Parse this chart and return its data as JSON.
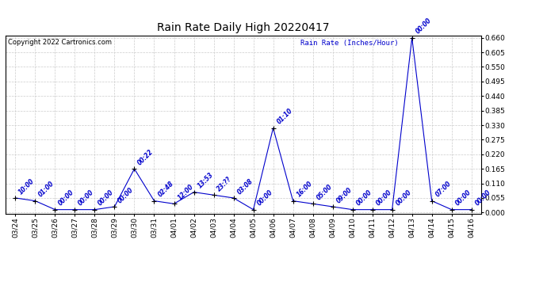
{
  "title": "Rain Rate Daily High 20220417",
  "copyright": "Copyright 2022 Cartronics.com",
  "legend_label": "Rain Rate (Inches/Hour)",
  "x_labels": [
    "03/24",
    "03/25",
    "03/26",
    "03/27",
    "03/28",
    "03/29",
    "03/30",
    "03/31",
    "04/01",
    "04/02",
    "04/03",
    "04/04",
    "04/05",
    "04/06",
    "04/07",
    "04/08",
    "04/09",
    "04/10",
    "04/11",
    "04/12",
    "04/13",
    "04/14",
    "04/15",
    "04/16"
  ],
  "y_values": [
    0.055,
    0.044,
    0.011,
    0.011,
    0.011,
    0.022,
    0.165,
    0.044,
    0.033,
    0.077,
    0.066,
    0.055,
    0.011,
    0.319,
    0.044,
    0.033,
    0.022,
    0.011,
    0.011,
    0.011,
    0.66,
    0.044,
    0.011,
    0.011
  ],
  "point_labels": [
    "10:00",
    "01:00",
    "00:00",
    "00:00",
    "00:00",
    "00:00",
    "00:22",
    "02:48",
    "12:00",
    "13:53",
    "23:??",
    "03:08",
    "00:00",
    "01:10",
    "16:00",
    "05:00",
    "09:00",
    "00:00",
    "00:00",
    "00:00",
    "00:00",
    "07:00",
    "00:00",
    "00:00"
  ],
  "line_color": "#0000cc",
  "marker_color": "#000000",
  "label_color": "#0000cc",
  "bg_color": "#ffffff",
  "grid_color": "#cccccc",
  "y_min": 0.0,
  "y_max": 0.66,
  "y_ticks": [
    0.0,
    0.055,
    0.11,
    0.165,
    0.22,
    0.275,
    0.33,
    0.385,
    0.44,
    0.495,
    0.55,
    0.605,
    0.66
  ],
  "title_fontsize": 10,
  "point_label_fontsize": 5.5,
  "tick_fontsize": 6.5,
  "copyright_fontsize": 6,
  "legend_fontsize": 6.5
}
